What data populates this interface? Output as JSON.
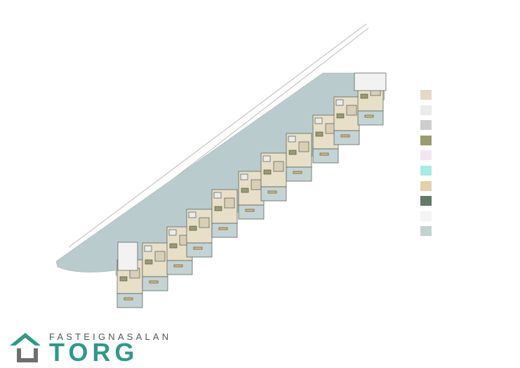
{
  "logo": {
    "line1": "FASTEIGNASALAN",
    "line2": "TORG",
    "color_teal": "#2e9a88",
    "color_gray": "#6e6e6e"
  },
  "legend": {
    "swatches": [
      "#e2d9c6",
      "#ebebeb",
      "#cdcdcd",
      "#9a9b6e",
      "#f3e6f3",
      "#a8ebe6",
      "#e6d0a6",
      "#637a66",
      "#f5f3f5",
      "#c3d1d1"
    ]
  },
  "plan": {
    "terrace_color": "#b9cbcc",
    "unit_color": "#e8dfc8",
    "wall_color": "#4f5a4f",
    "balcony_color": "#c4d3d4",
    "unit_count": 11
  }
}
